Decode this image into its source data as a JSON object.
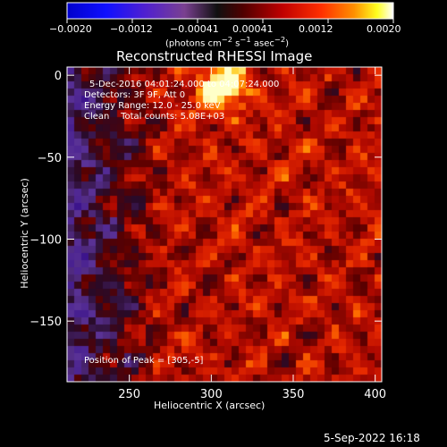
{
  "colorbar": {
    "tick_labels": [
      "−0.0020",
      "−0.0012",
      "−0.00041",
      "0.00041",
      "0.0012",
      "0.0020"
    ],
    "units_html": "(photons cm<sup>−2</sup> s<sup>−1</sup> asec<sup>−2</sup>)"
  },
  "chart_data": {
    "type": "heatmap",
    "title": "Reconstructed RHESSI Image",
    "xlabel": "Heliocentric X (arcsec)",
    "ylabel": "Heliocentric Y (arcsec)",
    "xlim": [
      212,
      404
    ],
    "ylim": [
      -187,
      5
    ],
    "x_ticks": [
      250,
      300,
      350,
      400
    ],
    "y_ticks": [
      0,
      -50,
      -100,
      -150
    ],
    "color_range": [
      -0.002,
      0.002
    ],
    "colormap": [
      "#000080",
      "#0000ff",
      "#5000d0",
      "#8040a0",
      "#000000",
      "#400000",
      "#a00000",
      "#ff2000",
      "#ff8000",
      "#ffff00",
      "#ffffff"
    ],
    "peak": {
      "x": 305,
      "y": -5
    },
    "annotations": {
      "time_range": "5-Dec-2016 04:01:24.000 to 04:07:24.000",
      "detectors": "Detectors: 3F 9F, Att 0",
      "energy_range": "Energy Range: 12.0 - 25.0 keV",
      "clean_counts": "Clean    Total counts: 5.08E+03",
      "peak_position": "Position of Peak = [305,-5]"
    }
  },
  "footer": {
    "timestamp": "5-Sep-2022 16:18"
  }
}
